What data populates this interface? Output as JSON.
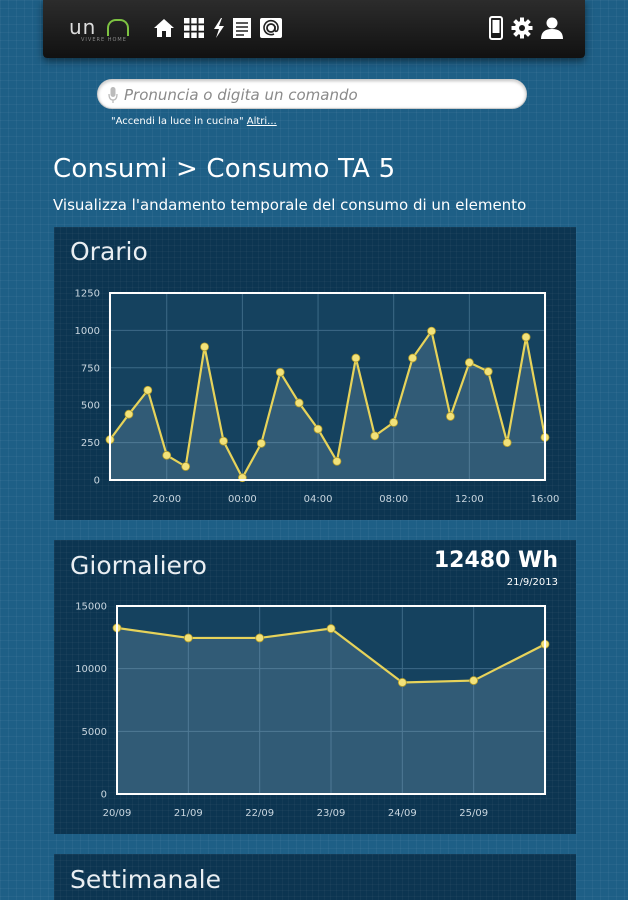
{
  "header": {
    "logo_text": "un",
    "logo_sub": "VIVERE HOME",
    "nav_icons": [
      "home-icon",
      "grid-icon",
      "lightning-icon",
      "document-icon",
      "at-icon"
    ],
    "right_icons": [
      "phone-icon",
      "gear-icon",
      "user-icon"
    ]
  },
  "search": {
    "placeholder": "Pronuncia o digita un comando",
    "value": "",
    "hint_example": "\"Accendi la luce in cucina\"",
    "hint_more": "Altri..."
  },
  "page": {
    "title": "Consumi > Consumo TA 5",
    "subtitle": "Visualizza l'andamento temporale del consumo di un elemento"
  },
  "colors": {
    "background": "#1e5f86",
    "panel": "#0c3551",
    "series": "#e7d35a",
    "logo_accent": "#7dc242"
  },
  "panels": {
    "hourly": {
      "title": "Orario"
    },
    "daily": {
      "title": "Giornaliero",
      "total": "12480 Wh",
      "total_date": "21/9/2013"
    },
    "weekly": {
      "title": "Settimanale"
    }
  },
  "chart_data": [
    {
      "type": "line",
      "title": "Orario",
      "x_ticks": [
        "20:00",
        "00:00",
        "04:00",
        "08:00",
        "12:00",
        "16:00"
      ],
      "y_ticks": [
        "0",
        "250",
        "500",
        "750",
        "1000",
        "1250"
      ],
      "ylim": [
        0,
        1250
      ],
      "grid": true,
      "series": [
        {
          "values": [
            270,
            440,
            600,
            165,
            90,
            890,
            260,
            15,
            245,
            720,
            515,
            340,
            125,
            815,
            295,
            385,
            815,
            995,
            425,
            785,
            725,
            250,
            955,
            285
          ]
        }
      ]
    },
    {
      "type": "line",
      "title": "Giornaliero",
      "x_ticks": [
        "20/09",
        "21/09",
        "22/09",
        "23/09",
        "24/09",
        "25/09"
      ],
      "y_ticks": [
        "0",
        "5000",
        "10000",
        "15000"
      ],
      "ylim": [
        0,
        15000
      ],
      "grid": true,
      "series": [
        {
          "values": [
            13250,
            12450,
            12450,
            13200,
            8900,
            9050,
            11950
          ]
        }
      ]
    }
  ]
}
